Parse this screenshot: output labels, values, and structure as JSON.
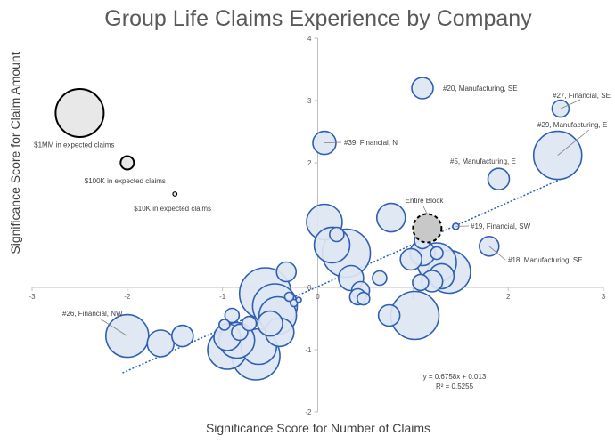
{
  "chart_data": {
    "type": "scatter",
    "title": "Group Life Claims Experience by Company",
    "xlabel": "Significance Score for Number of Claims",
    "ylabel": "Significance Score for Claim Amount",
    "xlim": [
      -3,
      3
    ],
    "ylim": [
      -2,
      4
    ],
    "x_ticks": [
      -3,
      -2,
      -1,
      0,
      1,
      2,
      3
    ],
    "y_ticks": [
      -2,
      -1,
      0,
      1,
      2,
      3,
      4
    ],
    "colors": {
      "bubble_fill": "#dde6f3",
      "bubble_stroke": "#2f5fb3",
      "trend": "#2f5fb3",
      "axis": "#bfbfbf",
      "entire_fill": "#c8c8c8",
      "entire_stroke": "#000000",
      "legend_fill": "#e8e8e8",
      "legend_stroke": "#000000"
    },
    "size_legend": [
      {
        "x": -2.5,
        "y": 2.8,
        "r": 27,
        "text": "$1MM in expected claims",
        "tx": -2.98,
        "ty": 2.25
      },
      {
        "x": -2.0,
        "y": 2.0,
        "r": 7.5,
        "text": "$100K in expected claims",
        "tx": -2.45,
        "ty": 1.67
      },
      {
        "x": -1.5,
        "y": 1.5,
        "r": 2.3,
        "text": "$10K in expected claims",
        "tx": -1.93,
        "ty": 1.23
      }
    ],
    "points": [
      {
        "x": 1.1,
        "y": 3.2,
        "r": 12,
        "label": "#20, Manufacturing, SE"
      },
      {
        "x": 2.55,
        "y": 2.87,
        "r": 9.5,
        "label": "#27, Financial, SE"
      },
      {
        "x": 2.52,
        "y": 2.12,
        "r": 27,
        "label": "#29, Manufacturing, E"
      },
      {
        "x": 0.07,
        "y": 2.32,
        "r": 13,
        "label": "#39, Financial, N"
      },
      {
        "x": 1.9,
        "y": 1.74,
        "r": 12,
        "label": "#5, Manufacturing, E"
      },
      {
        "x": 1.45,
        "y": 0.98,
        "r": 3.5,
        "label": "#19, Financial, SW"
      },
      {
        "x": 1.8,
        "y": 0.66,
        "r": 11,
        "label": "#18, Manufacturing, SE"
      },
      {
        "x": -2.0,
        "y": -0.78,
        "r": 24,
        "label": "#26, Financial, NW"
      },
      {
        "x": -1.65,
        "y": -0.9,
        "r": 15
      },
      {
        "x": -1.42,
        "y": -0.78,
        "r": 12
      },
      {
        "x": 0.07,
        "y": 1.05,
        "r": 20
      },
      {
        "x": 0.15,
        "y": 0.68,
        "r": 20
      },
      {
        "x": 0.3,
        "y": 0.55,
        "r": 27
      },
      {
        "x": 0.2,
        "y": 0.85,
        "r": 8
      },
      {
        "x": 0.77,
        "y": 1.12,
        "r": 16
      },
      {
        "x": 1.15,
        "y": 1.05,
        "r": 9
      },
      {
        "x": 1.1,
        "y": 0.75,
        "r": 9
      },
      {
        "x": 1.1,
        "y": 0.55,
        "r": 14
      },
      {
        "x": 0.98,
        "y": 0.45,
        "r": 12
      },
      {
        "x": 1.25,
        "y": 0.4,
        "r": 22
      },
      {
        "x": 1.38,
        "y": 0.25,
        "r": 24
      },
      {
        "x": 1.3,
        "y": 0.18,
        "r": 14
      },
      {
        "x": 1.2,
        "y": 0.1,
        "r": 12
      },
      {
        "x": 1.08,
        "y": 0.08,
        "r": 9
      },
      {
        "x": 1.25,
        "y": 0.55,
        "r": 7
      },
      {
        "x": 0.35,
        "y": 0.15,
        "r": 14
      },
      {
        "x": 0.65,
        "y": 0.15,
        "r": 8
      },
      {
        "x": 0.45,
        "y": -0.05,
        "r": 10
      },
      {
        "x": 0.42,
        "y": -0.15,
        "r": 9
      },
      {
        "x": 0.48,
        "y": -0.18,
        "r": 7
      },
      {
        "x": -0.33,
        "y": 0.25,
        "r": 11
      },
      {
        "x": -0.55,
        "y": -0.1,
        "r": 29
      },
      {
        "x": -0.45,
        "y": -0.3,
        "r": 25
      },
      {
        "x": -0.42,
        "y": -0.45,
        "r": 21
      },
      {
        "x": -0.5,
        "y": -0.58,
        "r": 14
      },
      {
        "x": -0.4,
        "y": -0.72,
        "r": 16
      },
      {
        "x": -0.3,
        "y": -0.15,
        "r": 5
      },
      {
        "x": -0.25,
        "y": -0.25,
        "r": 4
      },
      {
        "x": -0.2,
        "y": -0.2,
        "r": 3
      },
      {
        "x": -0.62,
        "y": -0.95,
        "r": 20
      },
      {
        "x": -0.65,
        "y": -1.1,
        "r": 27
      },
      {
        "x": -0.95,
        "y": -1.0,
        "r": 22
      },
      {
        "x": -0.85,
        "y": -0.85,
        "r": 20
      },
      {
        "x": -0.9,
        "y": -0.45,
        "r": 8
      },
      {
        "x": -0.98,
        "y": -0.6,
        "r": 6
      },
      {
        "x": -0.72,
        "y": -0.58,
        "r": 8
      },
      {
        "x": -0.82,
        "y": -0.72,
        "r": 9
      },
      {
        "x": 0.75,
        "y": -0.45,
        "r": 12
      },
      {
        "x": 1.02,
        "y": -0.45,
        "r": 27
      },
      {
        "x": -0.95,
        "y": -0.8,
        "r": 15
      }
    ],
    "entire_block": {
      "x": 1.15,
      "y": 0.95,
      "r": 16,
      "label": "Entire Block"
    },
    "trendline": {
      "slope": 0.6758,
      "intercept": 0.013,
      "x_from": -2.05,
      "x_to": 2.55
    },
    "equation": "y = 0.6758x + 0.013",
    "r_squared": "R² = 0.5255"
  }
}
